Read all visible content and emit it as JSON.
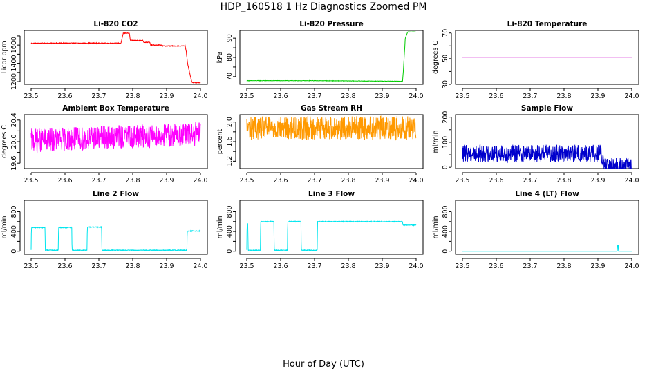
{
  "figure": {
    "title": "HDP_160518  1 Hz Diagnostics Zoomed PM",
    "xlabel": "Hour of Day (UTC)"
  },
  "chart_data": [
    {
      "type": "line",
      "title": "Li-820 CO2",
      "ylabel": "Licor ppm",
      "color": "#ff0000",
      "xlim": [
        23.5,
        24.0
      ],
      "ylim": [
        1170,
        1760
      ],
      "xticks": [
        "23.5",
        "23.6",
        "23.7",
        "23.8",
        "23.9",
        "24.0"
      ],
      "yticks": [
        {
          "v": 1200,
          "label": "1200"
        },
        {
          "v": 1300,
          "label": ""
        },
        {
          "v": 1400,
          "label": "1400"
        },
        {
          "v": 1500,
          "label": ""
        },
        {
          "v": 1600,
          "label": "1600"
        },
        {
          "v": 1700,
          "label": ""
        }
      ],
      "x": [
        23.5,
        23.765,
        23.768,
        23.772,
        23.79,
        23.793,
        23.83,
        23.833,
        23.85,
        23.853,
        23.885,
        23.888,
        23.955,
        23.958,
        23.962,
        23.97,
        23.975,
        24.0
      ],
      "y": [
        1620,
        1620,
        1660,
        1730,
        1730,
        1650,
        1650,
        1630,
        1630,
        1600,
        1600,
        1590,
        1590,
        1530,
        1400,
        1260,
        1190,
        1190
      ],
      "noise": 4
    },
    {
      "type": "line",
      "title": "Li-820 Pressure",
      "ylabel": "kPa",
      "color": "#00cc00",
      "xlim": [
        23.5,
        24.0
      ],
      "ylim": [
        66,
        94
      ],
      "xticks": [
        "23.5",
        "23.6",
        "23.7",
        "23.8",
        "23.9",
        "24.0"
      ],
      "yticks": [
        {
          "v": 70,
          "label": "70"
        },
        {
          "v": 75,
          "label": ""
        },
        {
          "v": 80,
          "label": "80"
        },
        {
          "v": 85,
          "label": ""
        },
        {
          "v": 90,
          "label": "90"
        }
      ],
      "x": [
        23.5,
        23.7,
        23.955,
        23.96,
        23.963,
        23.968,
        23.975,
        24.0
      ],
      "y": [
        67.9,
        67.9,
        67.6,
        67.6,
        75.0,
        90.0,
        93.2,
        93.2
      ],
      "noise": 0.1
    },
    {
      "type": "line",
      "title": "Li-820 Temperature",
      "ylabel": "degrees C",
      "color": "#cc00cc",
      "xlim": [
        23.5,
        24.0
      ],
      "ylim": [
        30,
        72
      ],
      "xticks": [
        "23.5",
        "23.6",
        "23.7",
        "23.8",
        "23.9",
        "24.0"
      ],
      "yticks": [
        {
          "v": 30,
          "label": "30"
        },
        {
          "v": 40,
          "label": ""
        },
        {
          "v": 50,
          "label": "50"
        },
        {
          "v": 60,
          "label": ""
        },
        {
          "v": 70,
          "label": "70"
        }
      ],
      "x": [
        23.5,
        24.0
      ],
      "y": [
        51.2,
        51.2
      ],
      "noise": 0
    },
    {
      "type": "line",
      "title": "Ambient Box Temperature",
      "ylabel": "degrees C",
      "color": "#ff00ff",
      "xlim": [
        23.5,
        24.0
      ],
      "ylim": [
        19.5,
        20.5
      ],
      "xticks": [
        "23.5",
        "23.6",
        "23.7",
        "23.8",
        "23.9",
        "24.0"
      ],
      "yticks": [
        {
          "v": 19.6,
          "label": "19.6"
        },
        {
          "v": 19.8,
          "label": ""
        },
        {
          "v": 20.0,
          "label": "20.0"
        },
        {
          "v": 20.2,
          "label": ""
        },
        {
          "v": 20.4,
          "label": "20.4"
        }
      ],
      "x": [
        23.5,
        24.0
      ],
      "y": [
        20.02,
        20.14
      ],
      "noise": 0.22
    },
    {
      "type": "line",
      "title": "Gas Stream RH",
      "ylabel": "percent",
      "color": "#ff9900",
      "xlim": [
        23.5,
        24.0
      ],
      "ylim": [
        1.05,
        2.15
      ],
      "xticks": [
        "23.5",
        "23.6",
        "23.7",
        "23.8",
        "23.9",
        "24.0"
      ],
      "yticks": [
        {
          "v": 1.2,
          "label": "1.2"
        },
        {
          "v": 1.4,
          "label": ""
        },
        {
          "v": 1.6,
          "label": "1.6"
        },
        {
          "v": 1.8,
          "label": ""
        },
        {
          "v": 2.0,
          "label": "2.0"
        }
      ],
      "x": [
        23.5,
        24.0
      ],
      "y": [
        1.88,
        1.88
      ],
      "noise": 0.24
    },
    {
      "type": "line",
      "title": "Sample Flow",
      "ylabel": "ml/min",
      "color": "#0000cc",
      "xlim": [
        23.5,
        24.0
      ],
      "ylim": [
        -5,
        210
      ],
      "xticks": [
        "23.5",
        "23.6",
        "23.7",
        "23.8",
        "23.9",
        "24.0"
      ],
      "yticks": [
        {
          "v": 0,
          "label": "0"
        },
        {
          "v": 50,
          "label": ""
        },
        {
          "v": 100,
          "label": "100"
        },
        {
          "v": 150,
          "label": ""
        },
        {
          "v": 200,
          "label": "200"
        }
      ],
      "x": [
        23.5,
        23.91,
        23.915,
        23.92,
        24.0
      ],
      "y": [
        55,
        55,
        15,
        2,
        2
      ],
      "noise": 35
    },
    {
      "type": "line",
      "title": "Line 2 Flow",
      "ylabel": "ml/min",
      "color": "#00e5ee",
      "xlim": [
        23.5,
        24.0
      ],
      "ylim": [
        -60,
        1030
      ],
      "xticks": [
        "23.5",
        "23.6",
        "23.7",
        "23.8",
        "23.9",
        "24.0"
      ],
      "yticks": [
        {
          "v": 0,
          "label": "0"
        },
        {
          "v": 200,
          "label": ""
        },
        {
          "v": 400,
          "label": "400"
        },
        {
          "v": 600,
          "label": ""
        },
        {
          "v": 800,
          "label": "800"
        }
      ],
      "x": [
        23.5,
        23.501,
        23.541,
        23.542,
        23.58,
        23.581,
        23.62,
        23.621,
        23.665,
        23.666,
        23.708,
        23.709,
        23.96,
        23.961,
        24.0
      ],
      "y": [
        20,
        480,
        480,
        20,
        20,
        480,
        480,
        20,
        20,
        490,
        490,
        20,
        20,
        410,
        410
      ],
      "noise": 8
    },
    {
      "type": "line",
      "title": "Line 3 Flow",
      "ylabel": "ml/min",
      "color": "#00e5ee",
      "xlim": [
        23.5,
        24.0
      ],
      "ylim": [
        -60,
        1030
      ],
      "xticks": [
        "23.5",
        "23.6",
        "23.7",
        "23.8",
        "23.9",
        "24.0"
      ],
      "yticks": [
        {
          "v": 0,
          "label": "0"
        },
        {
          "v": 200,
          "label": ""
        },
        {
          "v": 400,
          "label": "400"
        },
        {
          "v": 600,
          "label": ""
        },
        {
          "v": 800,
          "label": "800"
        }
      ],
      "x": [
        23.5,
        23.501,
        23.503,
        23.504,
        23.54,
        23.541,
        23.58,
        23.581,
        23.62,
        23.621,
        23.66,
        23.661,
        23.708,
        23.709,
        23.96,
        23.961,
        24.0
      ],
      "y": [
        20,
        560,
        560,
        20,
        20,
        600,
        600,
        20,
        20,
        600,
        600,
        20,
        20,
        600,
        600,
        530,
        530
      ],
      "noise": 8
    },
    {
      "type": "line",
      "title": "Line 4 (LT) Flow",
      "ylabel": "ml/min",
      "color": "#00e5ee",
      "xlim": [
        23.5,
        24.0
      ],
      "ylim": [
        -60,
        1030
      ],
      "xticks": [
        "23.5",
        "23.6",
        "23.7",
        "23.8",
        "23.9",
        "24.0"
      ],
      "yticks": [
        {
          "v": 0,
          "label": "0"
        },
        {
          "v": 200,
          "label": ""
        },
        {
          "v": 400,
          "label": "400"
        },
        {
          "v": 600,
          "label": ""
        },
        {
          "v": 800,
          "label": "800"
        }
      ],
      "x": [
        23.5,
        23.957,
        23.958,
        23.96,
        23.961,
        24.0
      ],
      "y": [
        2,
        2,
        120,
        120,
        2,
        2
      ],
      "noise": 0
    }
  ]
}
